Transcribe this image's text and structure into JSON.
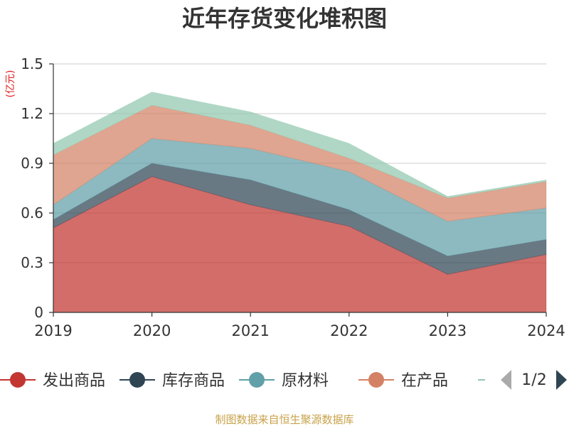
{
  "chart_data": {
    "type": "area",
    "stacked": true,
    "title": "近年存货变化堆积图",
    "unit_label": "(亿元)",
    "x": [
      "2019",
      "2020",
      "2021",
      "2022",
      "2023",
      "2024"
    ],
    "ylim": [
      0,
      1.5
    ],
    "yticks": [
      "0",
      "0.3",
      "0.6",
      "0.9",
      "1.2",
      "1.5"
    ],
    "grid": true,
    "series": [
      {
        "name": "发出商品",
        "color": "#c23531",
        "values": [
          0.51,
          0.82,
          0.65,
          0.52,
          0.23,
          0.35
        ]
      },
      {
        "name": "库存商品",
        "color": "#2f4554",
        "values": [
          0.05,
          0.08,
          0.15,
          0.1,
          0.11,
          0.09
        ]
      },
      {
        "name": "原材料",
        "color": "#61a0a8",
        "values": [
          0.09,
          0.15,
          0.19,
          0.23,
          0.21,
          0.19
        ]
      },
      {
        "name": "在产品",
        "color": "#d48265",
        "values": [
          0.3,
          0.2,
          0.14,
          0.08,
          0.14,
          0.16
        ]
      },
      {
        "name": "",
        "color": "#91c7ae",
        "values": [
          0.07,
          0.08,
          0.08,
          0.09,
          0.01,
          0.01
        ]
      }
    ],
    "legend": {
      "placement": "bottom",
      "page": "1/2"
    },
    "source": "制图数据来自恒生聚源数据库"
  }
}
